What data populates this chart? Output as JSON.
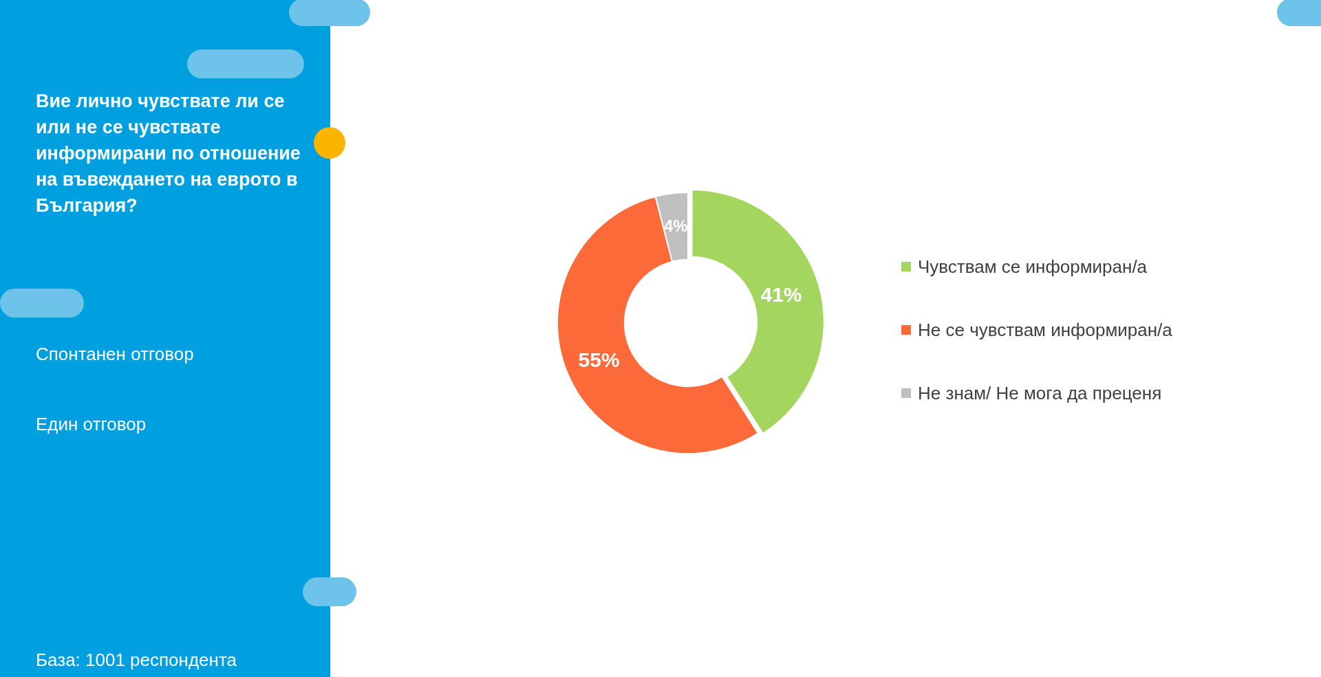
{
  "chart_data": {
    "type": "donut",
    "title": "Вие лично чувствате ли се или не се чувствате информирани по отношение на въвеждането на еврото в България?",
    "categories": [
      "Чувствам се информиран/а",
      "Не се чувствам информиран/а",
      "Не знам/ Не мога да преценя"
    ],
    "values": [
      41,
      55,
      4
    ],
    "colors": [
      "#a3d55f",
      "#fd6a3a",
      "#bfbfbf"
    ],
    "value_labels": [
      "41%",
      "55%",
      "4%"
    ],
    "legend": "right",
    "annotations": [
      "Спонтанен отговор",
      "Един отговор",
      "База:  1001 респондента"
    ]
  }
}
